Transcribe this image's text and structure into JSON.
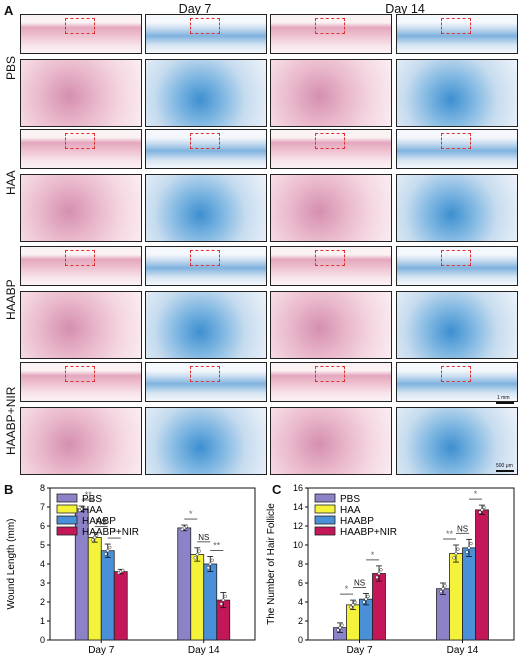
{
  "panelA": {
    "letter": "A",
    "columns": [
      "Day 7",
      "Day 14"
    ],
    "rows": [
      "PBS",
      "HAA",
      "HAABP",
      "HAABP+NIR"
    ],
    "scalebar_top": "1 mm",
    "scalebar_bottom": "500 μm"
  },
  "panelB": {
    "letter": "B",
    "chart_data": {
      "type": "bar",
      "categories": [
        "Day 7",
        "Day 14"
      ],
      "series": [
        {
          "name": "PBS",
          "values": [
            6.9,
            5.9
          ],
          "errors": [
            0.15,
            0.15
          ]
        },
        {
          "name": "HAA",
          "values": [
            5.4,
            4.5
          ],
          "errors": [
            0.25,
            0.35
          ]
        },
        {
          "name": "HAABP",
          "values": [
            4.7,
            4.0
          ],
          "errors": [
            0.35,
            0.4
          ]
        },
        {
          "name": "HAABP+NIR",
          "values": [
            3.6,
            2.1
          ],
          "errors": [
            0.12,
            0.4
          ]
        }
      ],
      "colors": [
        "#8b82c7",
        "#f5f23a",
        "#4a90d9",
        "#c4175a"
      ],
      "ylabel": "Wound Length  (mm)",
      "ylim": [
        0,
        8
      ],
      "yticks": [
        0,
        1,
        2,
        3,
        4,
        5,
        6,
        7,
        8
      ],
      "significance": [
        {
          "category": "Day 7",
          "from": "PBS",
          "to": "HAA",
          "label": "**"
        },
        {
          "category": "Day 7",
          "from": "HAA",
          "to": "HAABP",
          "label": "NS"
        },
        {
          "category": "Day 7",
          "from": "HAABP",
          "to": "HAABP+NIR",
          "label": "*"
        },
        {
          "category": "Day 14",
          "from": "PBS",
          "to": "HAA",
          "label": "*"
        },
        {
          "category": "Day 14",
          "from": "HAA",
          "to": "HAABP",
          "label": "NS"
        },
        {
          "category": "Day 14",
          "from": "HAABP",
          "to": "HAABP+NIR",
          "label": "**"
        }
      ],
      "legend": "top-left"
    }
  },
  "panelC": {
    "letter": "C",
    "chart_data": {
      "type": "bar",
      "categories": [
        "Day 7",
        "Day 14"
      ],
      "series": [
        {
          "name": "PBS",
          "values": [
            1.3,
            5.4
          ],
          "errors": [
            0.5,
            0.6
          ]
        },
        {
          "name": "HAA",
          "values": [
            3.7,
            9.1
          ],
          "errors": [
            0.5,
            0.9
          ]
        },
        {
          "name": "HAABP",
          "values": [
            4.3,
            9.7
          ],
          "errors": [
            0.6,
            0.9
          ]
        },
        {
          "name": "HAABP+NIR",
          "values": [
            7.0,
            13.7
          ],
          "errors": [
            0.8,
            0.5
          ]
        }
      ],
      "colors": [
        "#8b82c7",
        "#f5f23a",
        "#4a90d9",
        "#c4175a"
      ],
      "ylabel": "The Number of Hair Follicle",
      "ylim": [
        0,
        16
      ],
      "yticks": [
        0,
        2,
        4,
        6,
        8,
        10,
        12,
        14,
        16
      ],
      "significance": [
        {
          "category": "Day 7",
          "from": "PBS",
          "to": "HAA",
          "label": "*"
        },
        {
          "category": "Day 7",
          "from": "HAA",
          "to": "HAABP",
          "label": "NS"
        },
        {
          "category": "Day 7",
          "from": "HAABP",
          "to": "HAABP+NIR",
          "label": "*"
        },
        {
          "category": "Day 14",
          "from": "PBS",
          "to": "HAA",
          "label": "**"
        },
        {
          "category": "Day 14",
          "from": "HAA",
          "to": "HAABP",
          "label": "NS"
        },
        {
          "category": "Day 14",
          "from": "HAABP",
          "to": "HAABP+NIR",
          "label": "*"
        }
      ],
      "legend": "top-left"
    }
  }
}
